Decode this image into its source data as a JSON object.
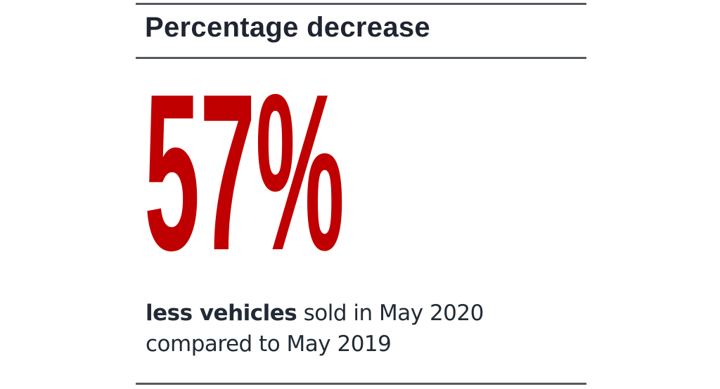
{
  "title": "Percentage decrease",
  "figure": {
    "value": "57%",
    "color": "#c00000"
  },
  "caption": {
    "bold": "less vehicles",
    "line1_rest": " sold in May 2020",
    "line2": "compared to May 2019"
  }
}
